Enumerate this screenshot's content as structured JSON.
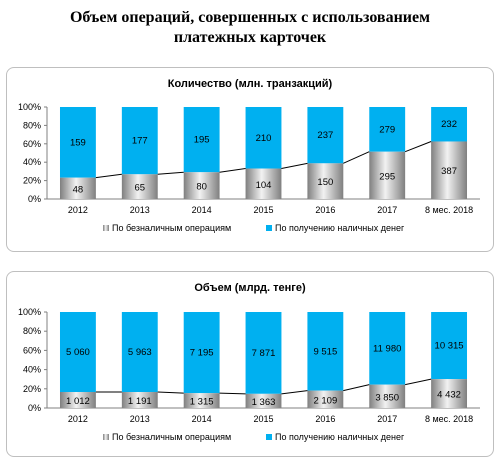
{
  "page": {
    "title_line1": "Объем операций, совершенных с использованием",
    "title_line2": "платежных карточек"
  },
  "colors": {
    "cashless": "#a6a6a6",
    "cash": "#00b0f0",
    "line": "#000000"
  },
  "chart_data": [
    {
      "type": "bar",
      "stacked": "percent",
      "title": "Количество  (млн. транзакций)",
      "categories": [
        "2012",
        "2013",
        "2014",
        "2015",
        "2016",
        "2017",
        "8 мес. 2018"
      ],
      "yticks": [
        "0%",
        "20%",
        "40%",
        "60%",
        "80%",
        "100%"
      ],
      "ylim": [
        0,
        100
      ],
      "grid": false,
      "legend_position": "bottom",
      "series": [
        {
          "name": "По безналичным операциям",
          "values": [
            48,
            65,
            80,
            104,
            150,
            295,
            387
          ]
        },
        {
          "name": "По получению наличных денег",
          "values": [
            159,
            177,
            195,
            210,
            237,
            279,
            232
          ]
        }
      ],
      "labels": {
        "cashless": [
          "48",
          "65",
          "80",
          "104",
          "150",
          "295",
          "387"
        ],
        "cash": [
          "159",
          "177",
          "195",
          "210",
          "237",
          "279",
          "232"
        ]
      }
    },
    {
      "type": "bar",
      "stacked": "percent",
      "title": "Объем  (млрд. тенге)",
      "categories": [
        "2012",
        "2013",
        "2014",
        "2015",
        "2016",
        "2017",
        "8 мес. 2018"
      ],
      "yticks": [
        "0%",
        "20%",
        "40%",
        "60%",
        "80%",
        "100%"
      ],
      "ylim": [
        0,
        100
      ],
      "grid": false,
      "legend_position": "bottom",
      "series": [
        {
          "name": "По безналичным операциям",
          "values": [
            1012,
            1191,
            1315,
            1363,
            2109,
            3850,
            4432
          ]
        },
        {
          "name": "По получению наличных денег",
          "values": [
            5060,
            5963,
            7195,
            7871,
            9515,
            11980,
            10315
          ]
        }
      ],
      "labels": {
        "cashless": [
          "1 012",
          "1 191",
          "1 315",
          "1 363",
          "2 109",
          "3 850",
          "4 432"
        ],
        "cash": [
          "5 060",
          "5 963",
          "7 195",
          "7 871",
          "9 515",
          "11 980",
          "10 315"
        ]
      }
    }
  ]
}
